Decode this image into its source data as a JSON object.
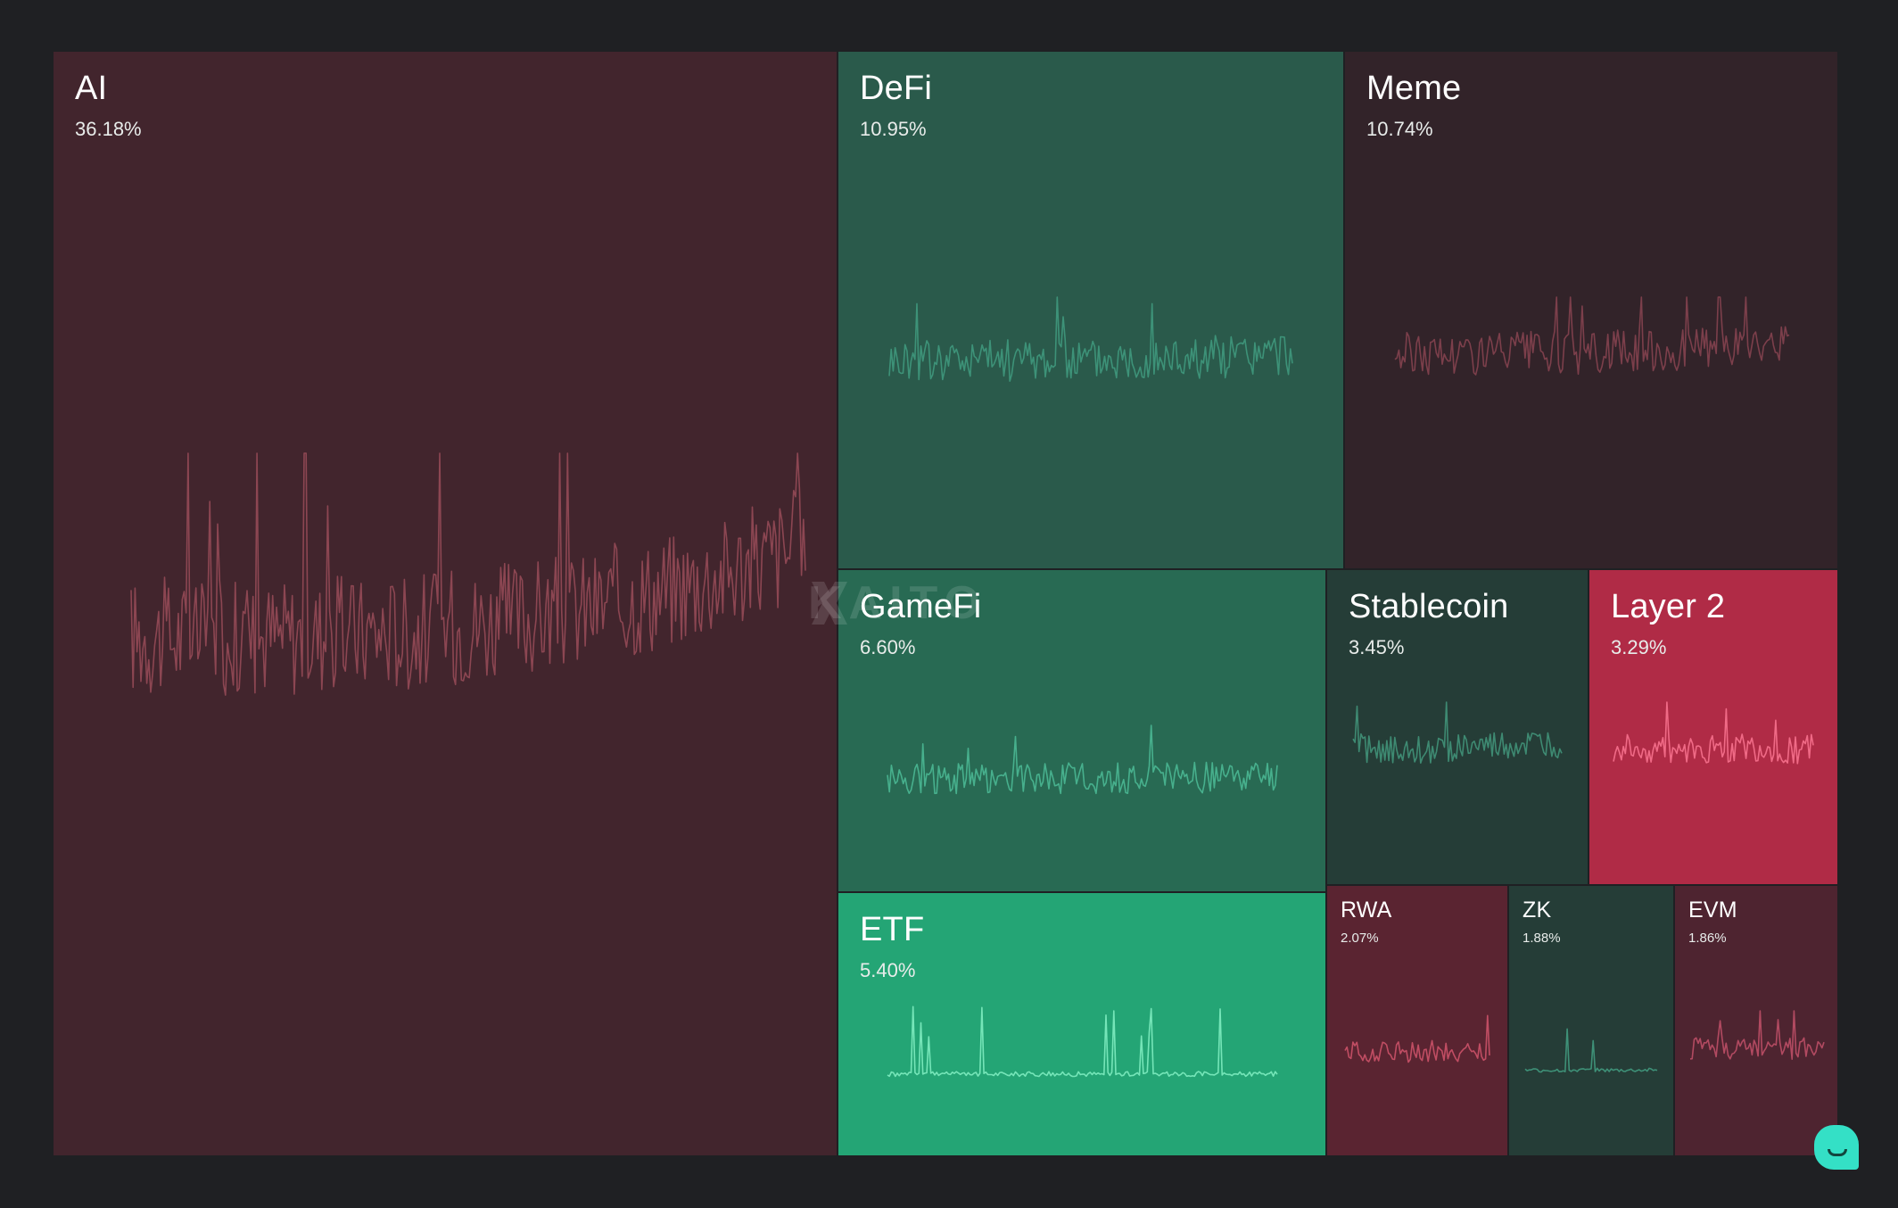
{
  "chart_data": {
    "type": "treemap",
    "watermark": "KAITO",
    "tiles": [
      {
        "name": "AI",
        "percent": "36.18%",
        "value": 36.18,
        "color": "#42252d",
        "line": "#8c4652",
        "size": "xl"
      },
      {
        "name": "DeFi",
        "percent": "10.95%",
        "value": 10.95,
        "color": "#2a5a4b",
        "line": "#3d9278",
        "size": "l"
      },
      {
        "name": "Meme",
        "percent": "10.74%",
        "value": 10.74,
        "color": "#322329",
        "line": "#7c3f4b",
        "size": "l"
      },
      {
        "name": "GameFi",
        "percent": "6.60%",
        "value": 6.6,
        "color": "#286a53",
        "line": "#47b08d",
        "size": "l"
      },
      {
        "name": "Stablecoin",
        "percent": "3.45%",
        "value": 3.45,
        "color": "#253d37",
        "line": "#3e8a72",
        "size": "l"
      },
      {
        "name": "Layer 2",
        "percent": "3.29%",
        "value": 3.29,
        "color": "#b02b46",
        "line": "#f06a86",
        "size": "l"
      },
      {
        "name": "ETF",
        "percent": "5.40%",
        "value": 5.4,
        "color": "#24a575",
        "line": "#75e5b8",
        "size": "l"
      },
      {
        "name": "RWA",
        "percent": "2.07%",
        "value": 2.07,
        "color": "#5a2431",
        "line": "#c04d63",
        "size": "s"
      },
      {
        "name": "ZK",
        "percent": "1.88%",
        "value": 1.88,
        "color": "#253d37",
        "line": "#3e9077",
        "size": "s"
      },
      {
        "name": "EVM",
        "percent": "1.86%",
        "value": 1.86,
        "color": "#4e2430",
        "line": "#b24a61",
        "size": "s"
      }
    ]
  },
  "colors": {
    "background": "#1f2023",
    "chat_button": "#34e0c6"
  }
}
